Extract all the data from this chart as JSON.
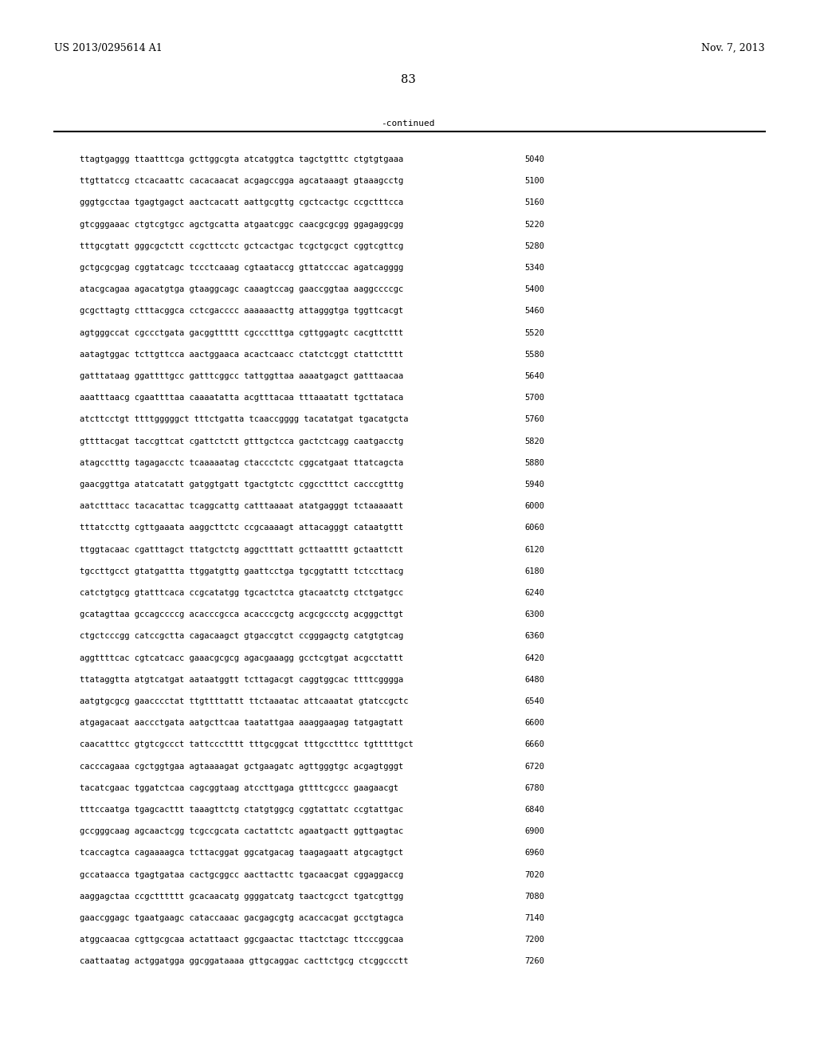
{
  "patent_number": "US 2013/0295614 A1",
  "date": "Nov. 7, 2013",
  "page_number": "83",
  "continued_text": "-continued",
  "background_color": "#ffffff",
  "text_color": "#000000",
  "seq_font_size": 7.5,
  "header_font_size": 9.0,
  "page_num_font_size": 10.5,
  "continued_font_size": 8.0,
  "lines": [
    [
      "ttagtgaggg ttaatttcga gcttggcgta atcatggtca tagctgtttc ctgtgtgaaa",
      "5040"
    ],
    [
      "ttgttatccg ctcacaattc cacacaacat acgagccgga agcataaagt gtaaagcctg",
      "5100"
    ],
    [
      "gggtgcctaa tgagtgagct aactcacatt aattgcgttg cgctcactgc ccgctttcca",
      "5160"
    ],
    [
      "gtcgggaaac ctgtcgtgcc agctgcatta atgaatcggc caacgcgcgg ggagaggcgg",
      "5220"
    ],
    [
      "tttgcgtatt gggcgctctt ccgcttcctc gctcactgac tcgctgcgct cggtcgttcg",
      "5280"
    ],
    [
      "gctgcgcgag cggtatcagc tccctcaaag cgtaataccg gttatcccac agatcagggg",
      "5340"
    ],
    [
      "atacgcagaa agacatgtga gtaaggcagc caaagtccag gaaccggtaa aaggccccgc",
      "5400"
    ],
    [
      "gcgcttagtg ctttacggca cctcgacccc aaaaaacttg attagggtga tggttcacgt",
      "5460"
    ],
    [
      "agtgggccat cgccctgata gacggttttt cgccctttga cgttggagtc cacgttcttt",
      "5520"
    ],
    [
      "aatagtggac tcttgttcca aactggaaca acactcaacc ctatctcggt ctattctttt",
      "5580"
    ],
    [
      "gatttataag ggattttgcc gatttcggcc tattggttaa aaaatgagct gatttaacaa",
      "5640"
    ],
    [
      "aaatttaacg cgaattttaa caaaatatta acgtttacaa tttaaatatt tgcttataca",
      "5700"
    ],
    [
      "atcttcctgt ttttgggggct tttctgatta tcaaccgggg tacatatgat tgacatgcta",
      "5760"
    ],
    [
      "gttttacgat taccgttcat cgattctctt gtttgctcca gactctcagg caatgacctg",
      "5820"
    ],
    [
      "atagcctttg tagagacctc tcaaaaatag ctaccctctc cggcatgaat ttatcagcta",
      "5880"
    ],
    [
      "gaacggttga atatcatatt gatggtgatt tgactgtctc cggcctttct cacccgtttg",
      "5940"
    ],
    [
      "aatctttacc tacacattac tcaggcattg catttaaaat atatgagggt tctaaaaatt",
      "6000"
    ],
    [
      "tttatccttg cgttgaaata aaggcttctc ccgcaaaagt attacagggt cataatgttt",
      "6060"
    ],
    [
      "ttggtacaac cgatttagct ttatgctctg aggctttatt gcttaatttt gctaattctt",
      "6120"
    ],
    [
      "tgccttgcct gtatgattta ttggatgttg gaattcctga tgcggtattt tctccttacg",
      "6180"
    ],
    [
      "catctgtgcg gtatttcaca ccgcatatgg tgcactctca gtacaatctg ctctgatgcc",
      "6240"
    ],
    [
      "gcatagttaa gccagccccg acacccgcca acacccgctg acgcgccctg acgggcttgt",
      "6300"
    ],
    [
      "ctgctcccgg catccgctta cagacaagct gtgaccgtct ccgggagctg catgtgtcag",
      "6360"
    ],
    [
      "aggttttcac cgtcatcacc gaaacgcgcg agacgaaagg gcctcgtgat acgcctattt",
      "6420"
    ],
    [
      "ttataggtta atgtcatgat aataatggtt tcttagacgt caggtggcac ttttcgggga",
      "6480"
    ],
    [
      "aatgtgcgcg gaacccctat ttgttttattt ttctaaatac attcaaatat gtatccgctc",
      "6540"
    ],
    [
      "atgagacaat aaccctgata aatgcttcaa taatattgaa aaaggaagag tatgagtatt",
      "6600"
    ],
    [
      "caacatttcc gtgtcgccct tattccctttt tttgcggcat tttgcctttcc tgtttttgct",
      "6660"
    ],
    [
      "cacccagaaa cgctggtgaa agtaaaagat gctgaagatc agttgggtgc acgagtgggt",
      "6720"
    ],
    [
      "tacatcgaac tggatctcaa cagcggtaag atccttgaga gttttcgccc gaagaacgt",
      "6780"
    ],
    [
      "tttccaatga tgagcacttt taaagttctg ctatgtggcg cggtattatc ccgtattgac",
      "6840"
    ],
    [
      "gccgggcaag agcaactcgg tcgccgcata cactattctc agaatgactt ggttgagtac",
      "6900"
    ],
    [
      "tcaccagtca cagaaaagca tcttacggat ggcatgacag taagagaatt atgcagtgct",
      "6960"
    ],
    [
      "gccataacca tgagtgataa cactgcggcc aacttacttc tgacaacgat cggaggaccg",
      "7020"
    ],
    [
      "aaggagctaa ccgctttttt gcacaacatg ggggatcatg taactcgcct tgatcgttgg",
      "7080"
    ],
    [
      "gaaccggagc tgaatgaagc cataccaaac gacgagcgtg acaccacgat gcctgtagca",
      "7140"
    ],
    [
      "atggcaacaa cgttgcgcaa actattaact ggcgaactac ttactctagc ttcccggcaa",
      "7200"
    ],
    [
      "caattaatag actggatgga ggcggataaaa gttgcaggac cacttctgcg ctcggccctt",
      "7260"
    ]
  ]
}
